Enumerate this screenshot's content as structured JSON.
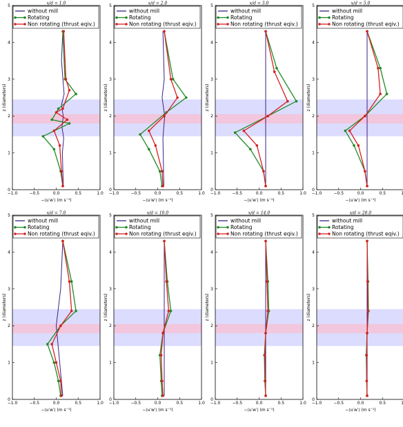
{
  "colors": {
    "without_mill": "#3b1f86",
    "rotating": "#1e8a24",
    "non_rotating": "#d62020",
    "band_outer": "#dcdcff",
    "band_inner": "#f2c6dc"
  },
  "chart_data": {
    "type": "line",
    "grid": false,
    "legend_placement": "top",
    "xlabel": "−⟨u′w′⟩ (m s⁻¹)",
    "ylabel": "z (diameters)",
    "xlim": [
      -1.0,
      1.0
    ],
    "ylim": [
      0,
      5
    ],
    "x_ticks": [
      "−1.0",
      "−0.5",
      "0.0",
      "0.5",
      "1.0"
    ],
    "y_ticks": [
      "0",
      "1",
      "2",
      "3",
      "4",
      "5"
    ],
    "shaded_bands": [
      {
        "from": 1.45,
        "to": 2.45
      },
      {
        "from": 1.8,
        "to": 2.05
      }
    ],
    "legend": [
      "without mill",
      "Rotating",
      "Non rotating (thrust eqiv.)"
    ],
    "panels": [
      {
        "title": "x/d = 1.0",
        "series": [
          {
            "name": "without mill",
            "x": [
              0.15,
              0.12,
              0.18,
              0.12,
              0.16,
              0.13,
              0.17,
              0.14,
              0.16
            ],
            "y": [
              4.3,
              3.5,
              2.6,
              2.3,
              2.0,
              1.7,
              1.4,
              1.0,
              0.1
            ]
          },
          {
            "name": "Rotating",
            "x": [
              0.15,
              0.2,
              0.45,
              0.05,
              -0.1,
              0.3,
              -0.3,
              -0.05,
              0.1,
              0.15
            ],
            "y": [
              4.3,
              3.0,
              2.6,
              2.2,
              1.9,
              1.8,
              1.45,
              1.1,
              0.5,
              0.1
            ]
          },
          {
            "name": "Non rotating (thrust eqiv.)",
            "x": [
              0.17,
              0.22,
              0.3,
              0.15,
              0.0,
              0.25,
              -0.05,
              0.08,
              0.12,
              0.15
            ],
            "y": [
              4.3,
              3.0,
              2.7,
              2.2,
              2.1,
              1.9,
              1.6,
              1.2,
              0.5,
              0.1
            ]
          }
        ]
      },
      {
        "title": "x/d = 2.0",
        "series": [
          {
            "name": "without mill",
            "x": [
              0.12,
              0.15,
              0.1,
              0.16,
              0.12,
              0.14
            ],
            "y": [
              4.3,
              3.0,
              2.5,
              2.0,
              1.4,
              0.1
            ]
          },
          {
            "name": "Rotating",
            "x": [
              0.15,
              0.35,
              0.65,
              0.2,
              -0.4,
              -0.2,
              0.05,
              0.1
            ],
            "y": [
              4.3,
              3.0,
              2.5,
              2.1,
              1.5,
              1.1,
              0.5,
              0.1
            ]
          },
          {
            "name": "Non rotating (thrust eqiv.)",
            "x": [
              0.15,
              0.3,
              0.45,
              0.15,
              -0.2,
              -0.05,
              0.1,
              0.12
            ],
            "y": [
              4.3,
              3.0,
              2.5,
              2.0,
              1.6,
              1.2,
              0.5,
              0.1
            ]
          }
        ]
      },
      {
        "title": "x/d = 3.0",
        "series": [
          {
            "name": "without mill",
            "x": [
              0.15,
              0.15,
              0.15,
              0.15
            ],
            "y": [
              4.3,
              3.0,
              2.0,
              0.1
            ]
          },
          {
            "name": "Rotating",
            "x": [
              0.15,
              0.4,
              0.85,
              0.2,
              -0.55,
              -0.2,
              0.1,
              0.15
            ],
            "y": [
              4.3,
              3.3,
              2.4,
              2.0,
              1.55,
              1.1,
              0.5,
              0.1
            ]
          },
          {
            "name": "Non rotating (thrust eqiv.)",
            "x": [
              0.15,
              0.35,
              0.65,
              0.2,
              -0.35,
              -0.05,
              0.1,
              0.15
            ],
            "y": [
              4.3,
              3.2,
              2.4,
              2.0,
              1.6,
              1.2,
              0.5,
              0.1
            ]
          }
        ]
      },
      {
        "title": "x/d = 5.0",
        "series": [
          {
            "name": "without mill",
            "x": [
              0.15,
              0.15,
              0.15,
              0.15
            ],
            "y": [
              4.3,
              3.0,
              2.0,
              0.1
            ]
          },
          {
            "name": "Rotating",
            "x": [
              0.15,
              0.45,
              0.6,
              0.1,
              -0.35,
              -0.15,
              0.1,
              0.15
            ],
            "y": [
              4.3,
              3.3,
              2.6,
              2.0,
              1.6,
              1.2,
              0.5,
              0.1
            ]
          },
          {
            "name": "Non rotating (thrust eqiv.)",
            "x": [
              0.15,
              0.4,
              0.45,
              0.1,
              -0.25,
              -0.05,
              0.1,
              0.15
            ],
            "y": [
              4.3,
              3.3,
              2.6,
              2.0,
              1.6,
              1.2,
              0.5,
              0.1
            ]
          }
        ]
      },
      {
        "title": "x/d = 7.0",
        "series": [
          {
            "name": "without mill",
            "x": [
              0.15,
              0.1,
              0.0,
              0.15
            ],
            "y": [
              4.3,
              3.0,
              2.0,
              0.1
            ]
          },
          {
            "name": "Rotating",
            "x": [
              0.15,
              0.35,
              0.45,
              0.1,
              -0.2,
              -0.05,
              0.05,
              0.1
            ],
            "y": [
              4.3,
              3.2,
              2.4,
              2.0,
              1.5,
              1.0,
              0.5,
              0.1
            ]
          },
          {
            "name": "Non rotating (thrust eqiv.)",
            "x": [
              0.15,
              0.3,
              0.35,
              0.1,
              -0.1,
              0.0,
              0.1,
              0.12
            ],
            "y": [
              4.3,
              3.2,
              2.4,
              2.0,
              1.5,
              1.0,
              0.5,
              0.1
            ]
          }
        ]
      },
      {
        "title": "x/d = 10.0",
        "series": [
          {
            "name": "without mill",
            "x": [
              0.15,
              0.15,
              0.15,
              0.15
            ],
            "y": [
              4.3,
              3.0,
              2.0,
              0.1
            ]
          },
          {
            "name": "Rotating",
            "x": [
              0.15,
              0.22,
              0.3,
              0.12,
              0.05,
              0.08,
              0.1
            ],
            "y": [
              4.3,
              3.2,
              2.4,
              1.8,
              1.2,
              0.5,
              0.1
            ]
          },
          {
            "name": "Non rotating (thrust eqiv.)",
            "x": [
              0.15,
              0.2,
              0.25,
              0.12,
              0.08,
              0.1,
              0.12
            ],
            "y": [
              4.3,
              3.2,
              2.4,
              1.8,
              1.2,
              0.5,
              0.1
            ]
          }
        ]
      },
      {
        "title": "x/d = 14.0",
        "series": [
          {
            "name": "without mill",
            "x": [
              0.15,
              0.15,
              0.15,
              0.15
            ],
            "y": [
              4.3,
              3.0,
              2.0,
              0.1
            ]
          },
          {
            "name": "Rotating",
            "x": [
              0.15,
              0.2,
              0.22,
              0.15,
              0.12,
              0.13,
              0.15
            ],
            "y": [
              4.3,
              3.2,
              2.4,
              1.8,
              1.2,
              0.5,
              0.1
            ]
          },
          {
            "name": "Non rotating (thrust eqiv.)",
            "x": [
              0.15,
              0.18,
              0.2,
              0.15,
              0.13,
              0.14,
              0.15
            ],
            "y": [
              4.3,
              3.2,
              2.4,
              1.8,
              1.2,
              0.5,
              0.1
            ]
          }
        ]
      },
      {
        "title": "x/d = 20.0",
        "series": [
          {
            "name": "without mill",
            "x": [
              0.15,
              0.15,
              0.15,
              0.15
            ],
            "y": [
              4.3,
              3.0,
              2.0,
              0.1
            ]
          },
          {
            "name": "Rotating",
            "x": [
              0.15,
              0.17,
              0.18,
              0.15,
              0.13,
              0.14,
              0.15
            ],
            "y": [
              4.3,
              3.2,
              2.4,
              1.8,
              1.2,
              0.5,
              0.1
            ]
          },
          {
            "name": "Non rotating (thrust eqiv.)",
            "x": [
              0.15,
              0.16,
              0.17,
              0.15,
              0.14,
              0.14,
              0.15
            ],
            "y": [
              4.3,
              3.2,
              2.4,
              1.8,
              1.2,
              0.5,
              0.1
            ]
          }
        ]
      }
    ]
  }
}
